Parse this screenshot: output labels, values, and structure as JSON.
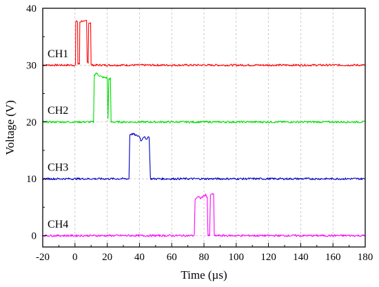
{
  "chart_data": {
    "type": "line",
    "title": "",
    "xlabel": "Time (µs)",
    "ylabel": "Voltage (V)",
    "xlim": [
      -20,
      180
    ],
    "ylim": [
      -2,
      40
    ],
    "xticks": [
      -20,
      0,
      20,
      40,
      60,
      80,
      100,
      120,
      140,
      160,
      180
    ],
    "yticks": [
      0,
      10,
      20,
      30,
      40
    ],
    "grid": "dashed",
    "series": [
      {
        "name": "CH1",
        "color": "#ff0000",
        "points": [
          [
            -20,
            30
          ],
          [
            0.3,
            30
          ],
          [
            0.5,
            37.5
          ],
          [
            1.2,
            37.8
          ],
          [
            1.6,
            37.6
          ],
          [
            1.8,
            30.2
          ],
          [
            2.8,
            30.2
          ],
          [
            3.0,
            37.6
          ],
          [
            4.5,
            37.8
          ],
          [
            6,
            37.6
          ],
          [
            7.2,
            37.8
          ],
          [
            7.6,
            30.5
          ],
          [
            8.2,
            30.5
          ],
          [
            8.5,
            37.4
          ],
          [
            9.7,
            37.5
          ],
          [
            10,
            30
          ],
          [
            180,
            30
          ]
        ]
      },
      {
        "name": "CH2",
        "color": "#00dd00",
        "points": [
          [
            -20,
            20
          ],
          [
            11.5,
            20
          ],
          [
            12,
            28.2
          ],
          [
            13,
            28.6
          ],
          [
            14,
            28.4
          ],
          [
            16,
            28.0
          ],
          [
            18,
            27.8
          ],
          [
            20,
            27.8
          ],
          [
            20.5,
            20.5
          ],
          [
            21,
            27.6
          ],
          [
            22,
            27.6
          ],
          [
            22.4,
            20
          ],
          [
            180,
            20
          ]
        ]
      },
      {
        "name": "CH3",
        "color": "#0000c0",
        "points": [
          [
            -20,
            10
          ],
          [
            33.5,
            10
          ],
          [
            34,
            17.8
          ],
          [
            36,
            17.9
          ],
          [
            38,
            17.6
          ],
          [
            40,
            17.5
          ],
          [
            41,
            16.6
          ],
          [
            42,
            17.2
          ],
          [
            43,
            17.5
          ],
          [
            44,
            16.8
          ],
          [
            45,
            17.3
          ],
          [
            46,
            17.4
          ],
          [
            46.8,
            10
          ],
          [
            180,
            10
          ]
        ]
      },
      {
        "name": "CH4",
        "color": "#ff00ff",
        "points": [
          [
            -20,
            0
          ],
          [
            74,
            0
          ],
          [
            74.5,
            6.4
          ],
          [
            76,
            6.8
          ],
          [
            78,
            6.6
          ],
          [
            80,
            7.0
          ],
          [
            81,
            7.2
          ],
          [
            82,
            6.8
          ],
          [
            82.5,
            0
          ],
          [
            83.5,
            0
          ],
          [
            84,
            7.0
          ],
          [
            85,
            7.4
          ],
          [
            86,
            7.2
          ],
          [
            86.4,
            0
          ],
          [
            180,
            0
          ]
        ]
      }
    ],
    "channel_labels": [
      {
        "text": "CH1",
        "x": -17,
        "y": 31.4
      },
      {
        "text": "CH2",
        "x": -17,
        "y": 21.4
      },
      {
        "text": "CH3",
        "x": -17,
        "y": 11.4
      },
      {
        "text": "CH4",
        "x": -17,
        "y": 1.4
      }
    ]
  }
}
